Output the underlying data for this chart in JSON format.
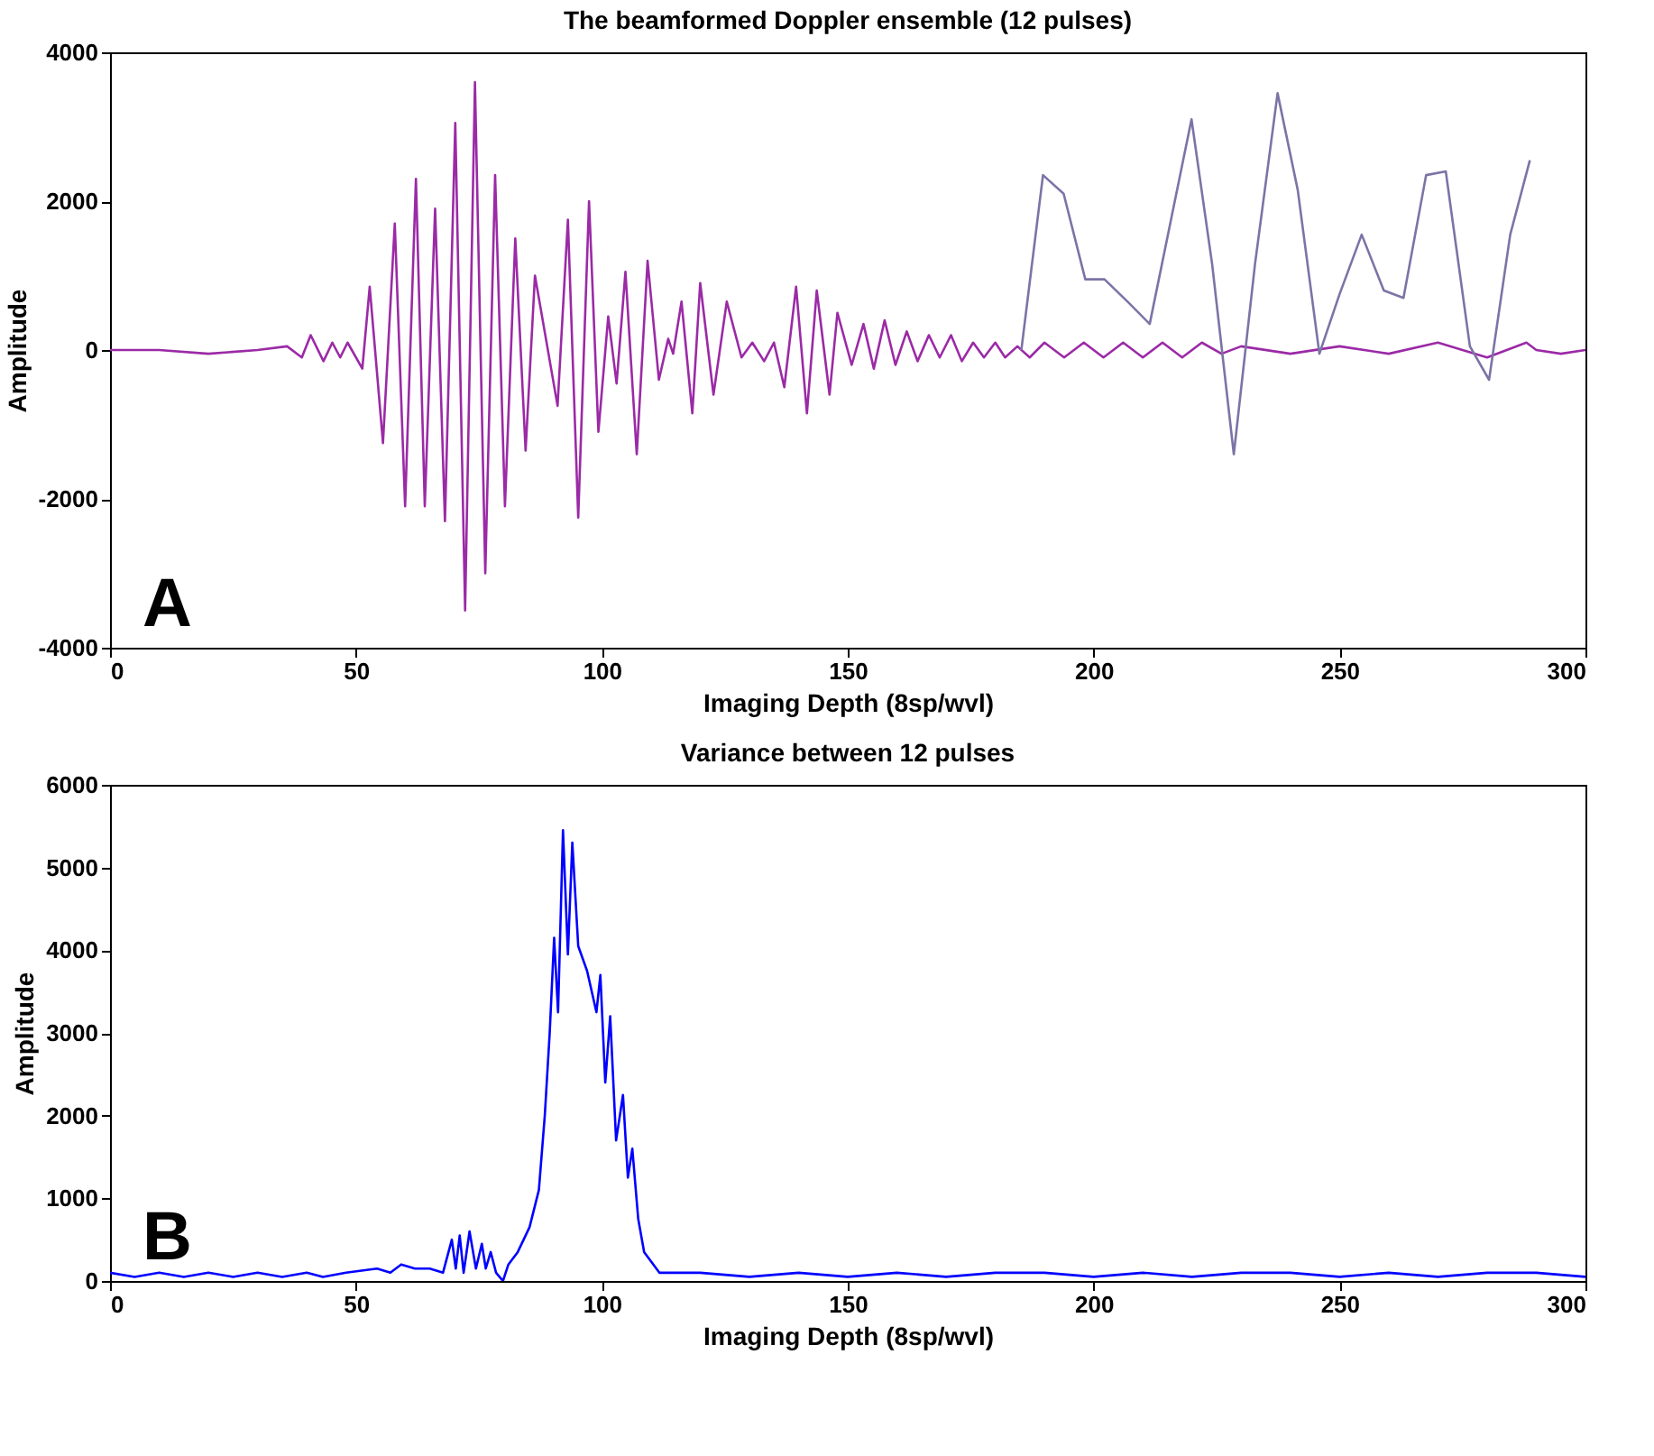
{
  "chart_data": [
    {
      "type": "line",
      "title": "The beamformed Doppler ensemble (12 pulses)",
      "xlabel": "Imaging Depth (8sp/wvl)",
      "ylabel": "Amplitude",
      "xlim": [
        0,
        300
      ],
      "xticks": [
        0,
        50,
        100,
        150,
        200,
        250,
        300
      ],
      "ylim": [
        -4000,
        4000
      ],
      "yticks": [
        -4000,
        -2000,
        0,
        2000,
        4000
      ],
      "grid": false,
      "marker": "none",
      "line_style": "solid",
      "annotations": [
        "A"
      ],
      "series": [
        {
          "color": "#9b2aa6",
          "x": [
            0,
            10,
            20,
            30,
            36,
            39,
            40.8,
            43.4,
            45.2,
            46.8,
            48.3,
            51.3,
            52.8,
            55.5,
            57.9,
            60,
            62.2,
            64,
            66.1,
            68.1,
            70.2,
            72.2,
            74.2,
            76.3,
            78.3,
            80.3,
            82.4,
            84.5,
            86.4,
            91,
            93.1,
            95.2,
            97.4,
            99.3,
            101.3,
            103,
            104.8,
            107.1,
            109.3,
            111.6,
            113.5,
            114.5,
            116.2,
            118.4,
            120,
            122.7,
            125.4,
            128.4,
            130.6,
            133,
            135,
            137.1,
            139.5,
            141.7,
            143.7,
            146.3,
            147.9,
            150.8,
            153.2,
            155.3,
            157.5,
            159.7,
            162,
            164.2,
            166.5,
            168.7,
            171,
            173.2,
            175.5,
            177.7,
            180,
            182,
            184.5,
            187,
            190,
            194,
            198,
            202,
            206,
            210,
            214,
            218,
            222,
            226,
            230,
            240,
            250,
            260,
            270,
            280,
            288,
            290,
            295,
            300
          ],
          "values": [
            0,
            0,
            -50,
            0,
            50,
            -100,
            200,
            -150,
            100,
            -100,
            100,
            -250,
            850,
            -1250,
            1700,
            -2100,
            2300,
            -2100,
            1900,
            -2300,
            3050,
            -3500,
            3600,
            -3000,
            2350,
            -2100,
            1500,
            -1350,
            1000,
            -750,
            1750,
            -2250,
            2000,
            -1100,
            450,
            -450,
            1050,
            -1400,
            1200,
            -400,
            150,
            -50,
            650,
            -850,
            900,
            -600,
            650,
            -100,
            100,
            -150,
            100,
            -500,
            850,
            -850,
            800,
            -600,
            500,
            -200,
            350,
            -250,
            400,
            -200,
            250,
            -150,
            200,
            -100,
            200,
            -150,
            100,
            -100,
            100,
            -100,
            50,
            -100,
            100,
            -100,
            100,
            -100,
            100,
            -100,
            100,
            -100,
            100,
            -50,
            50,
            -50,
            50,
            -50,
            100,
            -100,
            100,
            0,
            -50,
            0
          ]
        },
        {
          "color": "#7b74a6",
          "x": [
            185.3,
            189.7,
            193.9,
            198.3,
            202.2,
            206.9,
            211.4,
            219.9,
            224.1,
            228.5,
            232.8,
            237.4,
            241.5,
            245.9,
            250,
            254.5,
            259,
            263,
            267.6,
            271.6,
            276.5,
            280.4,
            284.7,
            288.7
          ],
          "values": [
            0,
            2350,
            2100,
            950,
            950,
            650,
            350,
            3100,
            1150,
            -1400,
            1150,
            3450,
            2150,
            -50,
            750,
            1550,
            800,
            700,
            2350,
            2400,
            50,
            -400,
            1550,
            2550
          ]
        }
      ]
    },
    {
      "type": "line",
      "title": "Variance between 12 pulses",
      "xlabel": "Imaging Depth (8sp/wvl)",
      "ylabel": "Amplitude",
      "xlim": [
        0,
        300
      ],
      "xticks": [
        0,
        50,
        100,
        150,
        200,
        250,
        300
      ],
      "ylim": [
        0,
        6000
      ],
      "yticks": [
        0,
        1000,
        2000,
        3000,
        4000,
        5000,
        6000
      ],
      "grid": false,
      "marker": "none",
      "line_style": "solid",
      "annotations": [
        "B"
      ],
      "series": [
        {
          "color": "#0000ff",
          "x": [
            0,
            5,
            10,
            15,
            20,
            25,
            30,
            35,
            40,
            43.3,
            48,
            54.3,
            57,
            59.2,
            62,
            65,
            67.7,
            69.5,
            70.3,
            71.1,
            71.9,
            73.1,
            74.4,
            75.6,
            76.4,
            77.4,
            78.5,
            79.9,
            81,
            82.9,
            85.3,
            87.2,
            88.4,
            89.4,
            90.3,
            91.1,
            92.1,
            93.1,
            94,
            95.2,
            97,
            98.9,
            99.7,
            100.7,
            101.7,
            102.9,
            104.3,
            105.3,
            106.2,
            107.4,
            108.6,
            111.7,
            115,
            120,
            130,
            140,
            150,
            160,
            170,
            180,
            190,
            200,
            210,
            220,
            230,
            240,
            250,
            260,
            270,
            280,
            290,
            300
          ],
          "values": [
            100,
            50,
            100,
            50,
            100,
            50,
            100,
            50,
            100,
            50,
            100,
            150,
            100,
            200,
            150,
            150,
            100,
            500,
            150,
            550,
            100,
            600,
            150,
            450,
            150,
            350,
            100,
            0,
            200,
            350,
            650,
            1100,
            2000,
            3000,
            4150,
            3250,
            5450,
            3950,
            5300,
            4050,
            3750,
            3250,
            3700,
            2400,
            3200,
            1700,
            2250,
            1250,
            1600,
            750,
            350,
            100,
            100,
            100,
            50,
            100,
            50,
            100,
            50,
            100,
            100,
            50,
            100,
            50,
            100,
            100,
            50,
            100,
            50,
            100,
            100,
            50
          ]
        }
      ]
    }
  ]
}
